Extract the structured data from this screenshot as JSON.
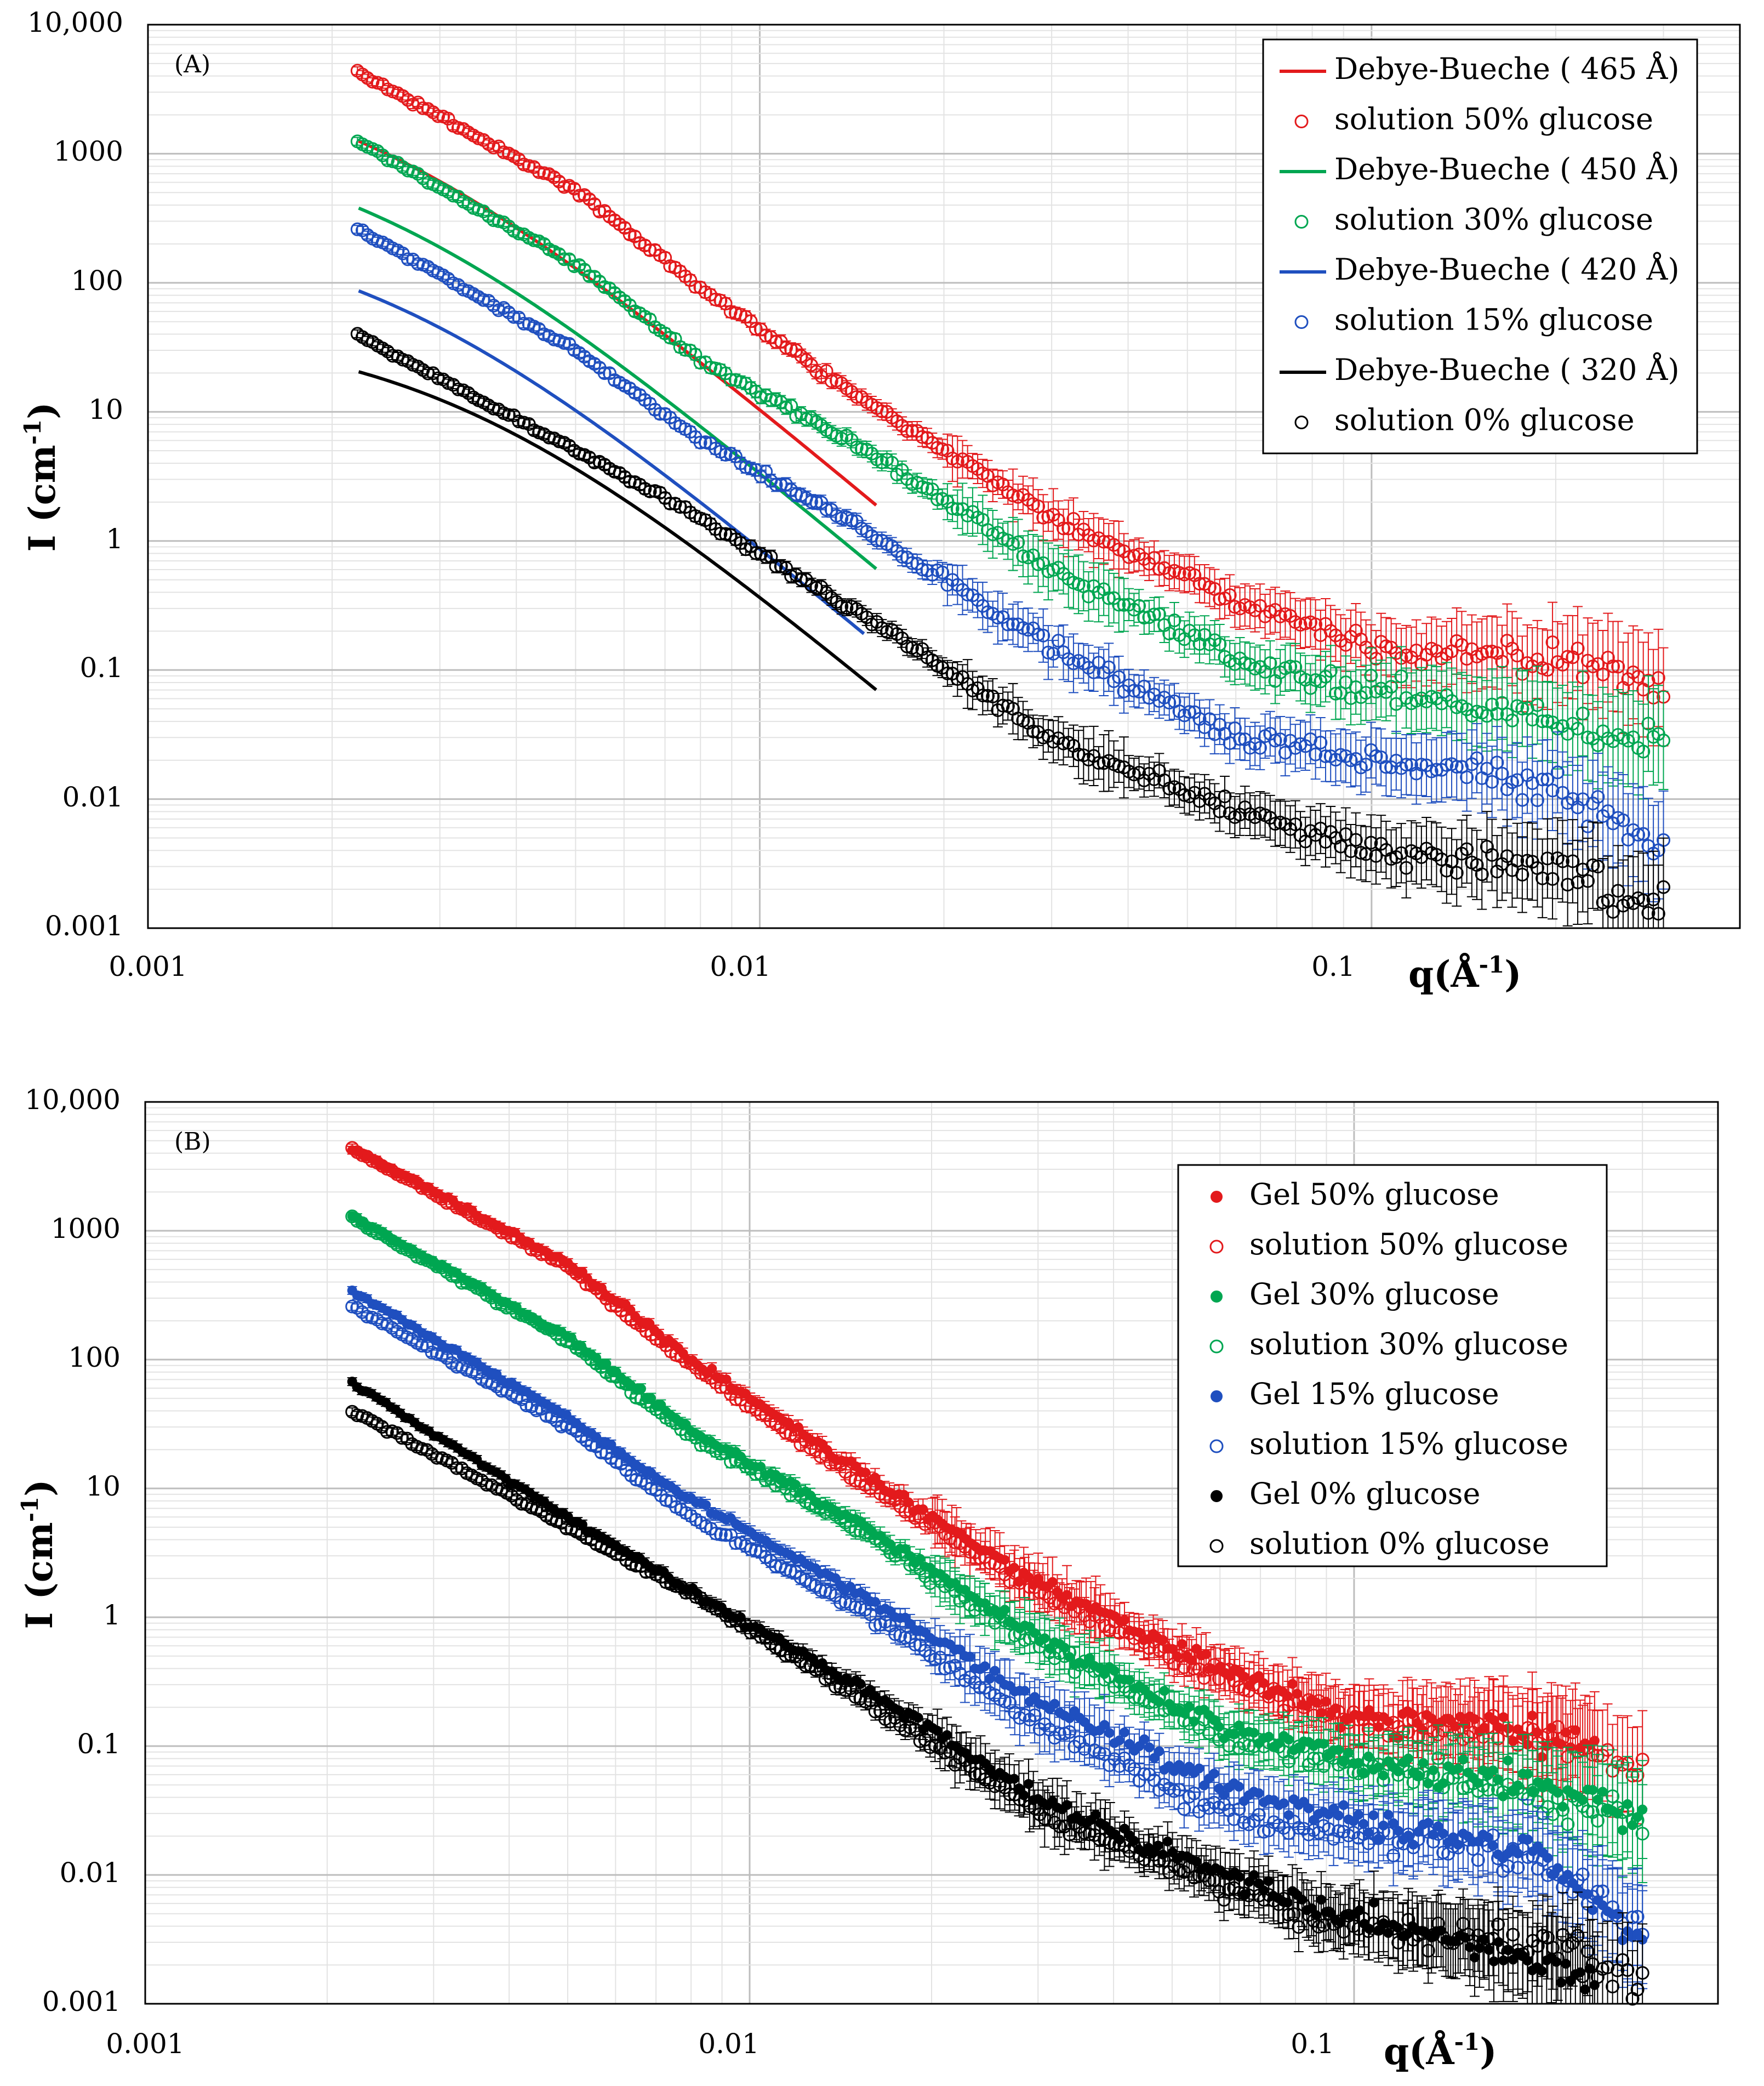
{
  "figure": {
    "panels": [
      {
        "id": "A",
        "tag": "(A)",
        "xlabel": "q(Å",
        "xlabel_sup": "-1",
        "xlabel_close": ")",
        "ylabel": "I (cm",
        "ylabel_sup": "-1",
        "ylabel_close": ")",
        "xticks": [
          "0.001",
          "0.01",
          "0.1"
        ],
        "yticks": [
          "10,000",
          "1000",
          "100",
          "10",
          "1",
          "0.1",
          "0.01",
          "0.001"
        ],
        "legend": [
          {
            "label": "Debye-Bueche ( 465 Å)",
            "marker": "line",
            "color": "#e31a1c"
          },
          {
            "label": "solution 50% glucose",
            "marker": "open",
            "color": "#e31a1c"
          },
          {
            "label": "Debye-Bueche ( 450 Å)",
            "marker": "line",
            "color": "#00a651"
          },
          {
            "label": "solution 30% glucose",
            "marker": "open",
            "color": "#00a651"
          },
          {
            "label": "Debye-Bueche ( 420 Å)",
            "marker": "line",
            "color": "#1f4fbf"
          },
          {
            "label": "solution 15% glucose",
            "marker": "open",
            "color": "#1f4fbf"
          },
          {
            "label": "Debye-Bueche ( 320 Å)",
            "marker": "line",
            "color": "#000000"
          },
          {
            "label": "solution 0% glucose",
            "marker": "open",
            "color": "#000000"
          }
        ]
      },
      {
        "id": "B",
        "tag": "(B)",
        "xlabel": "q(Å",
        "xlabel_sup": "-1",
        "xlabel_close": ")",
        "ylabel": "I (cm",
        "ylabel_sup": "-1",
        "ylabel_close": ")",
        "xticks": [
          "0.001",
          "0.01",
          "0.1"
        ],
        "yticks": [
          "10,000",
          "1000",
          "100",
          "10",
          "1",
          "0.1",
          "0.01",
          "0.001"
        ],
        "legend": [
          {
            "label": "Gel 50% glucose",
            "marker": "filled",
            "color": "#e31a1c"
          },
          {
            "label": "solution 50% glucose",
            "marker": "open",
            "color": "#e31a1c"
          },
          {
            "label": "Gel 30% glucose",
            "marker": "filled",
            "color": "#00a651"
          },
          {
            "label": "solution 30% glucose",
            "marker": "open",
            "color": "#00a651"
          },
          {
            "label": "Gel 15% glucose",
            "marker": "filled",
            "color": "#1f4fbf"
          },
          {
            "label": "solution 15% glucose",
            "marker": "open",
            "color": "#1f4fbf"
          },
          {
            "label": "Gel 0% glucose",
            "marker": "filled",
            "color": "#000000"
          },
          {
            "label": "solution 0% glucose",
            "marker": "open",
            "color": "#000000"
          }
        ]
      }
    ]
  },
  "chart_data": [
    {
      "type": "scatter",
      "panel": "A",
      "title": "",
      "xlabel": "q(Å-1)",
      "ylabel": "I (cm-1)",
      "xscale": "log",
      "yscale": "log",
      "xlim": [
        0.001,
        0.4
      ],
      "ylim": [
        0.001,
        10000
      ],
      "grid": true,
      "legend_position": "top-right",
      "series": [
        {
          "name": "Debye-Bueche ( 465 Å)",
          "kind": "fit",
          "color": "#e31a1c",
          "I0": 5300,
          "xi": 465,
          "q_range": [
            0.00221,
            0.0155
          ]
        },
        {
          "name": "Debye-Bueche ( 450 Å)",
          "kind": "fit",
          "color": "#00a651",
          "I0": 1500,
          "xi": 450,
          "q_range": [
            0.00221,
            0.0155
          ]
        },
        {
          "name": "Debye-Bueche ( 420 Å)",
          "kind": "fit",
          "color": "#1f4fbf",
          "I0": 300,
          "xi": 420,
          "q_range": [
            0.00221,
            0.0148
          ]
        },
        {
          "name": "Debye-Bueche ( 320 Å)",
          "kind": "fit",
          "color": "#000000",
          "I0": 46,
          "xi": 320,
          "q_range": [
            0.00221,
            0.0155
          ]
        },
        {
          "name": "solution 50% glucose",
          "kind": "open",
          "color": "#e31a1c",
          "anchors": [
            [
              0.0022,
              4300
            ],
            [
              0.005,
              520
            ],
            [
              0.008,
              90
            ],
            [
              0.015,
              12
            ],
            [
              0.03,
              1.5
            ],
            [
              0.06,
              0.35
            ],
            [
              0.1,
              0.15
            ],
            [
              0.2,
              0.12
            ],
            [
              0.3,
              0.07
            ]
          ]
        },
        {
          "name": "solution 30% glucose",
          "kind": "open",
          "color": "#00a651",
          "anchors": [
            [
              0.0022,
              1250
            ],
            [
              0.005,
              140
            ],
            [
              0.008,
              25
            ],
            [
              0.015,
              5
            ],
            [
              0.03,
              0.6
            ],
            [
              0.06,
              0.12
            ],
            [
              0.1,
              0.07
            ],
            [
              0.15,
              0.055
            ],
            [
              0.2,
              0.04
            ],
            [
              0.3,
              0.025
            ]
          ]
        },
        {
          "name": "solution 15% glucose",
          "kind": "open",
          "color": "#1f4fbf",
          "anchors": [
            [
              0.0022,
              260
            ],
            [
              0.005,
              30
            ],
            [
              0.008,
              6
            ],
            [
              0.015,
              1.2
            ],
            [
              0.03,
              0.15
            ],
            [
              0.06,
              0.03
            ],
            [
              0.1,
              0.02
            ],
            [
              0.15,
              0.017
            ],
            [
              0.2,
              0.012
            ],
            [
              0.3,
              0.004
            ]
          ]
        },
        {
          "name": "solution 0% glucose",
          "kind": "open",
          "color": "#000000",
          "anchors": [
            [
              0.0022,
              40
            ],
            [
              0.005,
              5
            ],
            [
              0.008,
              1.5
            ],
            [
              0.015,
              0.25
            ],
            [
              0.03,
              0.03
            ],
            [
              0.06,
              0.008
            ],
            [
              0.1,
              0.004
            ],
            [
              0.2,
              0.003
            ],
            [
              0.3,
              0.0015
            ]
          ]
        }
      ]
    },
    {
      "type": "scatter",
      "panel": "B",
      "title": "",
      "xlabel": "q(Å-1)",
      "ylabel": "I (cm-1)",
      "xscale": "log",
      "yscale": "log",
      "xlim": [
        0.001,
        0.4
      ],
      "ylim": [
        0.001,
        10000
      ],
      "grid": true,
      "legend_position": "top-right",
      "series": [
        {
          "name": "Gel 50% glucose",
          "kind": "filled",
          "color": "#e31a1c",
          "anchors": [
            [
              0.0022,
              4400
            ],
            [
              0.005,
              560
            ],
            [
              0.008,
              100
            ],
            [
              0.015,
              14
            ],
            [
              0.03,
              1.8
            ],
            [
              0.06,
              0.4
            ],
            [
              0.1,
              0.17
            ],
            [
              0.2,
              0.13
            ],
            [
              0.25,
              0.1
            ]
          ]
        },
        {
          "name": "solution 50% glucose",
          "kind": "open",
          "color": "#e31a1c",
          "anchors": [
            [
              0.0022,
              4300
            ],
            [
              0.005,
              520
            ],
            [
              0.008,
              90
            ],
            [
              0.015,
              12
            ],
            [
              0.03,
              1.5
            ],
            [
              0.06,
              0.35
            ],
            [
              0.1,
              0.15
            ],
            [
              0.2,
              0.12
            ],
            [
              0.3,
              0.07
            ]
          ]
        },
        {
          "name": "Gel 30% glucose",
          "kind": "filled",
          "color": "#00a651",
          "anchors": [
            [
              0.0022,
              1300
            ],
            [
              0.005,
              150
            ],
            [
              0.008,
              28
            ],
            [
              0.015,
              5.5
            ],
            [
              0.03,
              0.7
            ],
            [
              0.06,
              0.14
            ],
            [
              0.1,
              0.08
            ],
            [
              0.2,
              0.05
            ],
            [
              0.3,
              0.03
            ]
          ]
        },
        {
          "name": "solution 30% glucose",
          "kind": "open",
          "color": "#00a651",
          "anchors": [
            [
              0.0022,
              1250
            ],
            [
              0.005,
              140
            ],
            [
              0.008,
              25
            ],
            [
              0.015,
              5
            ],
            [
              0.03,
              0.6
            ],
            [
              0.06,
              0.12
            ],
            [
              0.1,
              0.07
            ],
            [
              0.15,
              0.055
            ],
            [
              0.2,
              0.04
            ],
            [
              0.3,
              0.025
            ]
          ]
        },
        {
          "name": "Gel 15% glucose",
          "kind": "filled",
          "color": "#1f4fbf",
          "anchors": [
            [
              0.0022,
              340
            ],
            [
              0.005,
              36
            ],
            [
              0.008,
              8
            ],
            [
              0.015,
              1.6
            ],
            [
              0.03,
              0.22
            ],
            [
              0.06,
              0.05
            ],
            [
              0.1,
              0.025
            ],
            [
              0.2,
              0.015
            ],
            [
              0.3,
              0.003
            ]
          ]
        },
        {
          "name": "solution 15% glucose",
          "kind": "open",
          "color": "#1f4fbf",
          "anchors": [
            [
              0.0022,
              260
            ],
            [
              0.005,
              30
            ],
            [
              0.008,
              6
            ],
            [
              0.015,
              1.2
            ],
            [
              0.03,
              0.15
            ],
            [
              0.06,
              0.03
            ],
            [
              0.1,
              0.02
            ],
            [
              0.15,
              0.017
            ],
            [
              0.2,
              0.012
            ],
            [
              0.3,
              0.004
            ]
          ]
        },
        {
          "name": "Gel 0% glucose",
          "kind": "filled",
          "color": "#000000",
          "anchors": [
            [
              0.0022,
              65
            ],
            [
              0.005,
              6
            ],
            [
              0.008,
              1.6
            ],
            [
              0.015,
              0.3
            ],
            [
              0.03,
              0.04
            ],
            [
              0.06,
              0.01
            ],
            [
              0.1,
              0.005
            ],
            [
              0.2,
              0.002
            ],
            [
              0.25,
              0.0013
            ]
          ]
        },
        {
          "name": "solution 0% glucose",
          "kind": "open",
          "color": "#000000",
          "anchors": [
            [
              0.0022,
              40
            ],
            [
              0.005,
              5
            ],
            [
              0.008,
              1.5
            ],
            [
              0.015,
              0.25
            ],
            [
              0.03,
              0.03
            ],
            [
              0.06,
              0.008
            ],
            [
              0.1,
              0.004
            ],
            [
              0.2,
              0.003
            ],
            [
              0.3,
              0.0015
            ]
          ]
        }
      ]
    }
  ]
}
